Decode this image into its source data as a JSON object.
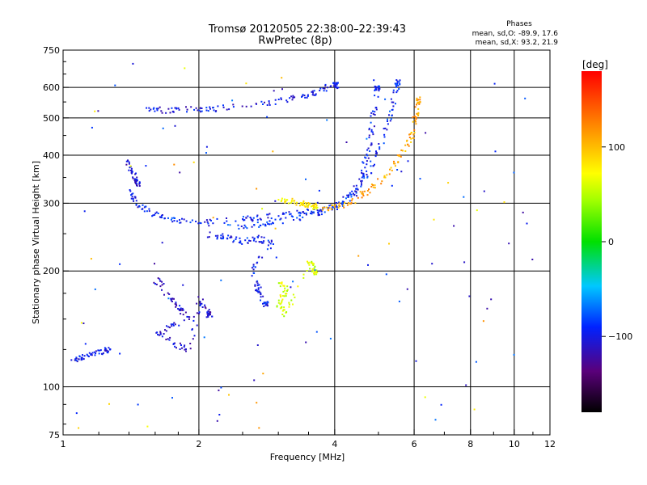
{
  "title": "Tromsø 20120505 22:38:00–22:39:43",
  "subtitle": "RwPretec (8p)",
  "stats": {
    "heading": "Phases",
    "line1": "mean, sd,O: -89.9, 17.6",
    "line2": "mean, sd,X:  93.2, 21.9"
  },
  "colorbar": {
    "label": "[deg]",
    "min": -180,
    "max": 180,
    "ticks": [
      {
        "label": "100",
        "value": 100
      },
      {
        "label": "0",
        "value": 0
      },
      {
        "label": "−100",
        "value": -100
      }
    ]
  },
  "chart_data": {
    "type": "scatter",
    "xlabel": "Frequency [MHz]",
    "ylabel": "Stationary phase Virtual Height [km]",
    "xscale": "log",
    "yscale": "log",
    "xlim": [
      1,
      12
    ],
    "ylim": [
      75,
      750
    ],
    "grid": true,
    "x_ticks": [
      {
        "label": "1",
        "value": 1
      },
      {
        "label": "2",
        "value": 2
      },
      {
        "label": "4",
        "value": 4
      },
      {
        "label": "6",
        "value": 6
      },
      {
        "label": "8",
        "value": 8
      },
      {
        "label": "10",
        "value": 10
      },
      {
        "label": "12",
        "value": 12
      }
    ],
    "x_grid": [
      2,
      4,
      6,
      8,
      10
    ],
    "y_ticks": [
      {
        "label": "75",
        "value": 75
      },
      {
        "label": "100",
        "value": 100
      },
      {
        "label": "200",
        "value": 200
      },
      {
        "label": "300",
        "value": 300
      },
      {
        "label": "400",
        "value": 400
      },
      {
        "label": "500",
        "value": 500
      },
      {
        "label": "600",
        "value": 600
      },
      {
        "label": "750",
        "value": 750
      }
    ],
    "y_grid": [
      100,
      200,
      300,
      400,
      500,
      600
    ],
    "clusters": [
      {
        "name": "o-trace-lower",
        "color_deg": -95,
        "points": [
          [
            1.4,
            330
          ],
          [
            1.45,
            300
          ],
          [
            1.55,
            285
          ],
          [
            1.7,
            275
          ],
          [
            1.9,
            270
          ],
          [
            2.2,
            270
          ],
          [
            2.6,
            275
          ],
          [
            3.0,
            280
          ],
          [
            3.4,
            285
          ],
          [
            3.8,
            292
          ],
          [
            4.1,
            300
          ],
          [
            4.4,
            320
          ],
          [
            4.6,
            360
          ],
          [
            4.75,
            420
          ],
          [
            4.85,
            500
          ],
          [
            4.95,
            600
          ]
        ]
      },
      {
        "name": "o-trace-mid",
        "color_deg": -90,
        "points": [
          [
            2.3,
            262
          ],
          [
            2.7,
            265
          ],
          [
            3.0,
            270
          ],
          [
            3.5,
            280
          ],
          [
            4.0,
            295
          ],
          [
            4.4,
            320
          ],
          [
            4.8,
            370
          ],
          [
            5.1,
            440
          ],
          [
            5.3,
            520
          ],
          [
            5.5,
            620
          ]
        ]
      },
      {
        "name": "o-trace-upper",
        "color_deg": -100,
        "points": [
          [
            1.5,
            530
          ],
          [
            1.7,
            525
          ],
          [
            1.9,
            530
          ],
          [
            2.1,
            528
          ],
          [
            2.5,
            540
          ],
          [
            3.0,
            555
          ],
          [
            3.4,
            570
          ],
          [
            3.7,
            595
          ],
          [
            4.0,
            610
          ]
        ]
      },
      {
        "name": "x-trace",
        "color_deg": 110,
        "points": [
          [
            3.7,
            288
          ],
          [
            4.0,
            295
          ],
          [
            4.4,
            305
          ],
          [
            4.8,
            330
          ],
          [
            5.2,
            360
          ],
          [
            5.6,
            400
          ],
          [
            5.9,
            450
          ],
          [
            6.0,
            500
          ],
          [
            6.1,
            560
          ]
        ]
      },
      {
        "name": "x-patch-1",
        "color_deg": 80,
        "points": [
          [
            3.0,
            310
          ],
          [
            3.2,
            305
          ],
          [
            3.4,
            300
          ],
          [
            3.6,
            296
          ]
        ]
      },
      {
        "name": "x-patch-2",
        "color_deg": 60,
        "points": [
          [
            3.0,
            190
          ],
          [
            3.1,
            180
          ],
          [
            3.0,
            165
          ],
          [
            3.1,
            155
          ],
          [
            3.5,
            215
          ],
          [
            3.6,
            200
          ]
        ]
      },
      {
        "name": "spread-f",
        "color_deg": -110,
        "points": [
          [
            1.6,
            190
          ],
          [
            1.7,
            175
          ],
          [
            1.8,
            160
          ],
          [
            1.9,
            150
          ],
          [
            1.6,
            140
          ],
          [
            1.75,
            130
          ],
          [
            1.9,
            125
          ],
          [
            2.0,
            170
          ],
          [
            2.1,
            155
          ]
        ]
      },
      {
        "name": "low-echo",
        "color_deg": -100,
        "points": [
          [
            1.05,
            118
          ],
          [
            1.1,
            120
          ],
          [
            1.15,
            122
          ],
          [
            1.25,
            125
          ]
        ]
      },
      {
        "name": "early-rise",
        "color_deg": -105,
        "points": [
          [
            1.38,
            390
          ],
          [
            1.42,
            360
          ],
          [
            1.46,
            340
          ]
        ]
      },
      {
        "name": "mid-echo",
        "color_deg": -95,
        "points": [
          [
            2.1,
            250
          ],
          [
            2.3,
            245
          ],
          [
            2.5,
            240
          ],
          [
            2.7,
            245
          ],
          [
            2.9,
            235
          ],
          [
            2.6,
            205
          ],
          [
            2.7,
            180
          ],
          [
            2.8,
            165
          ]
        ]
      }
    ]
  }
}
